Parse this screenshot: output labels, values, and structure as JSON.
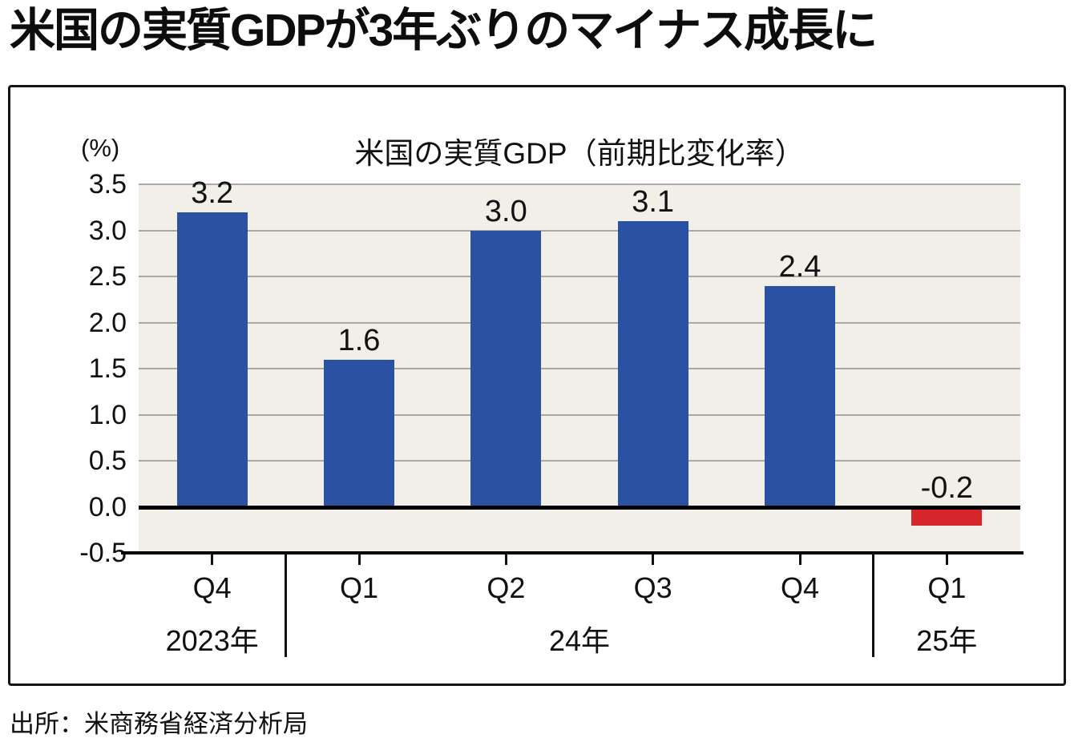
{
  "page": {
    "headline": "米国の実質GDPが3年ぶりのマイナス成長に",
    "source": "出所：米商務省経済分析局"
  },
  "chart_data": {
    "type": "bar",
    "title": "米国の実質GDP（前期比変化率）",
    "unit_label": "(%)",
    "categories": [
      "Q4",
      "Q1",
      "Q2",
      "Q3",
      "Q4",
      "Q1"
    ],
    "values": [
      3.2,
      1.6,
      3.0,
      3.1,
      2.4,
      -0.2
    ],
    "value_labels": [
      "3.2",
      "1.6",
      "3.0",
      "3.1",
      "2.4",
      "-0.2"
    ],
    "year_groups": [
      {
        "label": "2023年",
        "start": 0,
        "end": 0
      },
      {
        "label": "24年",
        "start": 1,
        "end": 4
      },
      {
        "label": "25年",
        "start": 5,
        "end": 5
      }
    ],
    "ylim": [
      -0.5,
      3.5
    ],
    "ytick_step": 0.5,
    "ytick_labels": [
      "3.5",
      "3.0",
      "2.5",
      "2.0",
      "1.5",
      "1.0",
      "0.5",
      "0.0",
      "-0.5"
    ],
    "grid": true,
    "legend": "none",
    "colors": {
      "bar_positive": "#2b51a2",
      "bar_negative": "#d6262b",
      "plot_bg": "#f1efe8",
      "grid": "#a8a8a8",
      "axis": "#000000",
      "text": "#111111"
    }
  }
}
